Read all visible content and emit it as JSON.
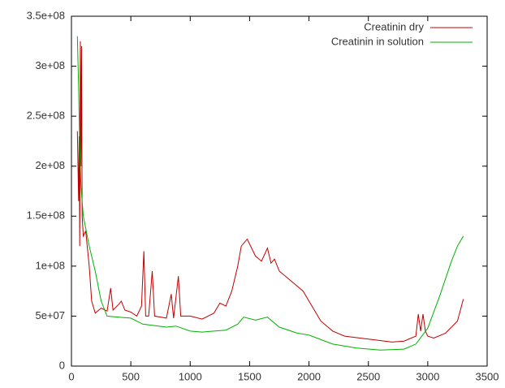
{
  "chart_data": {
    "type": "line",
    "xlim": [
      0,
      3500
    ],
    "ylim": [
      0,
      350000000
    ],
    "xticks": [
      0,
      500,
      1000,
      1500,
      2000,
      2500,
      3000,
      3500
    ],
    "yticks": [
      0,
      {
        "value": 50000000,
        "label": "5e+07"
      },
      {
        "value": 100000000,
        "label": "1e+08"
      },
      {
        "value": 150000000,
        "label": "1.5e+08"
      },
      {
        "value": 200000000,
        "label": "2e+08"
      },
      {
        "value": 250000000,
        "label": "2.5e+08"
      },
      {
        "value": 300000000,
        "label": "3e+08"
      },
      {
        "value": 350000000,
        "label": "3.5e+08"
      }
    ],
    "grid": false,
    "legend": "top-right",
    "series": [
      {
        "name": "Creatinin dry",
        "color": "#c00000",
        "x": [
          50,
          60,
          65,
          70,
          75,
          80,
          85,
          90,
          100,
          120,
          150,
          170,
          200,
          250,
          300,
          330,
          350,
          400,
          420,
          450,
          500,
          550,
          590,
          610,
          625,
          650,
          680,
          700,
          800,
          840,
          860,
          900,
          920,
          1000,
          1100,
          1200,
          1250,
          1300,
          1350,
          1400,
          1430,
          1480,
          1550,
          1600,
          1650,
          1680,
          1710,
          1750,
          1850,
          1950,
          2000,
          2100,
          2200,
          2300,
          2500,
          2700,
          2800,
          2900,
          2920,
          2940,
          2960,
          2980,
          3000,
          3050,
          3150,
          3250,
          3300
        ],
        "values": [
          235000000,
          165000000,
          230000000,
          120000000,
          325000000,
          200000000,
          320000000,
          150000000,
          130000000,
          135000000,
          100000000,
          65000000,
          53000000,
          58000000,
          55000000,
          78000000,
          56000000,
          62000000,
          65000000,
          56000000,
          54000000,
          50000000,
          60000000,
          115000000,
          50000000,
          50000000,
          95000000,
          50000000,
          48000000,
          72000000,
          48000000,
          90000000,
          50000000,
          50000000,
          47000000,
          53000000,
          63000000,
          60000000,
          75000000,
          100000000,
          120000000,
          127000000,
          110000000,
          105000000,
          118000000,
          103000000,
          107000000,
          95000000,
          85000000,
          75000000,
          65000000,
          45000000,
          35000000,
          30000000,
          27000000,
          24000000,
          25000000,
          30000000,
          52000000,
          35000000,
          52000000,
          35000000,
          30000000,
          28000000,
          33000000,
          45000000,
          67000000
        ]
      },
      {
        "name": "Creatinin in solution",
        "color": "#00b000",
        "x": [
          50,
          60,
          70,
          80,
          100,
          150,
          200,
          250,
          300,
          400,
          500,
          600,
          800,
          880,
          1000,
          1100,
          1300,
          1400,
          1450,
          1550,
          1650,
          1750,
          1900,
          2000,
          2200,
          2400,
          2600,
          2800,
          2900,
          3000,
          3100,
          3200,
          3250,
          3300
        ],
        "values": [
          330000000,
          280000000,
          220000000,
          180000000,
          150000000,
          120000000,
          95000000,
          65000000,
          50000000,
          49000000,
          48000000,
          42000000,
          39000000,
          40000000,
          35000000,
          34000000,
          36000000,
          42000000,
          49000000,
          46000000,
          49000000,
          39000000,
          33000000,
          31000000,
          22000000,
          18000000,
          16000000,
          17000000,
          22000000,
          38000000,
          70000000,
          105000000,
          120000000,
          130000000
        ]
      }
    ]
  }
}
